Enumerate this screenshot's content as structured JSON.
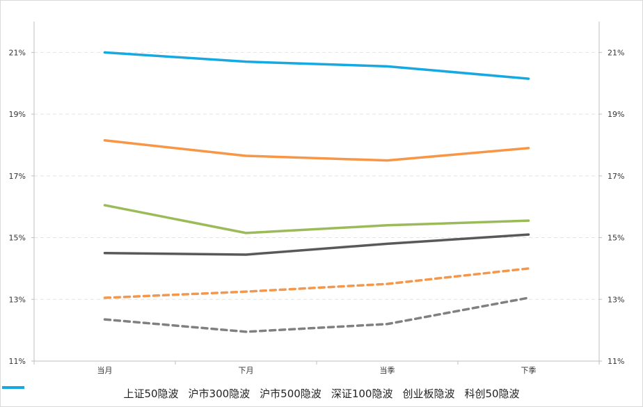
{
  "chart_data": {
    "type": "line",
    "title": "",
    "xlabel": "",
    "ylabel": "",
    "categories": [
      "当月",
      "下月",
      "当季",
      "下季"
    ],
    "y_ticks": [
      "11%",
      "13%",
      "15%",
      "17%",
      "19%",
      "21%"
    ],
    "ylim": [
      11,
      22
    ],
    "grid": true,
    "legend_position": "bottom",
    "dual_y_axis_mirrored": true,
    "series": [
      {
        "name": "上证50隐波",
        "values": [
          14.5,
          14.45,
          14.8,
          15.1
        ],
        "color": "#595959",
        "dash": "solid"
      },
      {
        "name": "沪市300隐波",
        "values": [
          13.05,
          13.25,
          13.5,
          14.0
        ],
        "color": "#f4974b",
        "dash": "dashed"
      },
      {
        "name": "沪市500隐波",
        "values": [
          12.35,
          11.95,
          12.2,
          13.05
        ],
        "color": "#808080",
        "dash": "dashed"
      },
      {
        "name": "深证100隐波",
        "values": [
          16.05,
          15.15,
          15.4,
          15.55
        ],
        "color": "#9bbb59",
        "dash": "solid"
      },
      {
        "name": "创业板隐波",
        "values": [
          18.15,
          17.65,
          17.5,
          17.9
        ],
        "color": "#f79646",
        "dash": "solid"
      },
      {
        "name": "科创50隐波",
        "values": [
          21.0,
          20.7,
          20.55,
          20.15
        ],
        "color": "#16a9e1",
        "dash": "solid"
      }
    ]
  }
}
